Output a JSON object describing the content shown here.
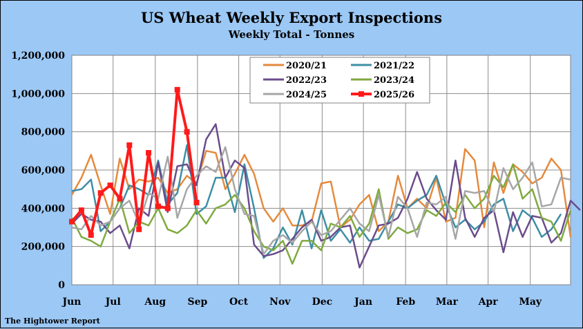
{
  "chart_data": {
    "type": "line",
    "title": "US Wheat Weekly Export Inspections",
    "subtitle": "Weekly Total - Tonnes",
    "footer": "The Hightower Report",
    "ylim": [
      0,
      1200000
    ],
    "yticks": [
      0,
      200000,
      400000,
      600000,
      800000,
      1000000,
      1200000
    ],
    "ytick_labels": [
      "0",
      "200,000",
      "400,000",
      "600,000",
      "800,000",
      "1,000,000",
      "1,200,000"
    ],
    "x_weeks": 52,
    "month_labels": [
      "Jun",
      "Jul",
      "Aug",
      "Sep",
      "Oct",
      "Nov",
      "Dec",
      "Jan",
      "Feb",
      "Mar",
      "Apr",
      "May"
    ],
    "month_start_week": [
      0,
      4.3,
      8.7,
      13.1,
      17.4,
      21.7,
      26.1,
      30.4,
      34.8,
      39.1,
      43.4,
      47.8
    ],
    "legend_position": "top-center",
    "series": [
      {
        "name": "2020/21",
        "color": "#e58a3c",
        "values": [
          470000,
          560000,
          680000,
          520000,
          370000,
          660000,
          500000,
          550000,
          540000,
          560000,
          480000,
          500000,
          570000,
          530000,
          700000,
          690000,
          500000,
          580000,
          680000,
          580000,
          400000,
          330000,
          400000,
          310000,
          310000,
          330000,
          530000,
          540000,
          300000,
          340000,
          420000,
          470000,
          280000,
          330000,
          570000,
          400000,
          450000,
          400000,
          560000,
          330000,
          350000,
          710000,
          650000,
          300000,
          640000,
          480000,
          630000,
          590000,
          530000,
          560000,
          660000,
          600000,
          250000
        ]
      },
      {
        "name": "2021/22",
        "color": "#3d8ea5",
        "values": [
          490000,
          500000,
          550000,
          280000,
          330000,
          400000,
          520000,
          500000,
          470000,
          650000,
          420000,
          480000,
          730000,
          370000,
          410000,
          560000,
          560000,
          380000,
          630000,
          400000,
          140000,
          190000,
          300000,
          210000,
          390000,
          190000,
          390000,
          230000,
          290000,
          220000,
          300000,
          230000,
          240000,
          330000,
          420000,
          400000,
          440000,
          470000,
          570000,
          420000,
          300000,
          340000,
          290000,
          330000,
          420000,
          450000,
          280000,
          390000,
          350000,
          250000,
          290000,
          370000
        ]
      },
      {
        "name": "2022/23",
        "color": "#6a4c8b",
        "values": [
          320000,
          370000,
          340000,
          330000,
          270000,
          310000,
          190000,
          400000,
          360000,
          640000,
          380000,
          620000,
          630000,
          520000,
          760000,
          840000,
          560000,
          650000,
          610000,
          210000,
          150000,
          160000,
          180000,
          240000,
          300000,
          340000,
          230000,
          250000,
          300000,
          310000,
          90000,
          200000,
          310000,
          320000,
          350000,
          450000,
          590000,
          450000,
          390000,
          340000,
          650000,
          350000,
          250000,
          350000,
          390000,
          170000,
          380000,
          250000,
          360000,
          350000,
          220000,
          270000,
          440000,
          390000
        ]
      },
      {
        "name": "2023/24",
        "color": "#7faa3f",
        "values": [
          350000,
          250000,
          230000,
          200000,
          330000,
          450000,
          270000,
          330000,
          310000,
          400000,
          290000,
          270000,
          310000,
          390000,
          320000,
          400000,
          420000,
          470000,
          400000,
          280000,
          200000,
          180000,
          230000,
          110000,
          230000,
          230000,
          180000,
          320000,
          300000,
          360000,
          250000,
          320000,
          500000,
          240000,
          300000,
          270000,
          290000,
          390000,
          360000,
          430000,
          380000,
          470000,
          400000,
          450000,
          570000,
          510000,
          630000,
          450000,
          500000,
          350000,
          330000,
          230000,
          390000
        ]
      },
      {
        "name": "2024/25",
        "color": "#a6a6a6",
        "values": [
          300000,
          290000,
          360000,
          310000,
          330000,
          400000,
          440000,
          320000,
          480000,
          450000,
          670000,
          350000,
          500000,
          570000,
          620000,
          590000,
          720000,
          500000,
          370000,
          360000,
          160000,
          230000,
          260000,
          220000,
          280000,
          330000,
          260000,
          280000,
          340000,
          400000,
          320000,
          280000,
          470000,
          250000,
          460000,
          400000,
          250000,
          430000,
          420000,
          460000,
          240000,
          490000,
          480000,
          490000,
          380000,
          610000,
          500000,
          560000,
          640000,
          410000,
          420000,
          560000,
          550000
        ]
      },
      {
        "name": "2025/26",
        "color": "#ff1a1a",
        "values": [
          330000,
          390000,
          260000,
          480000,
          520000,
          450000,
          730000,
          290000,
          690000,
          410000,
          400000,
          1020000,
          800000,
          430000
        ]
      }
    ]
  }
}
